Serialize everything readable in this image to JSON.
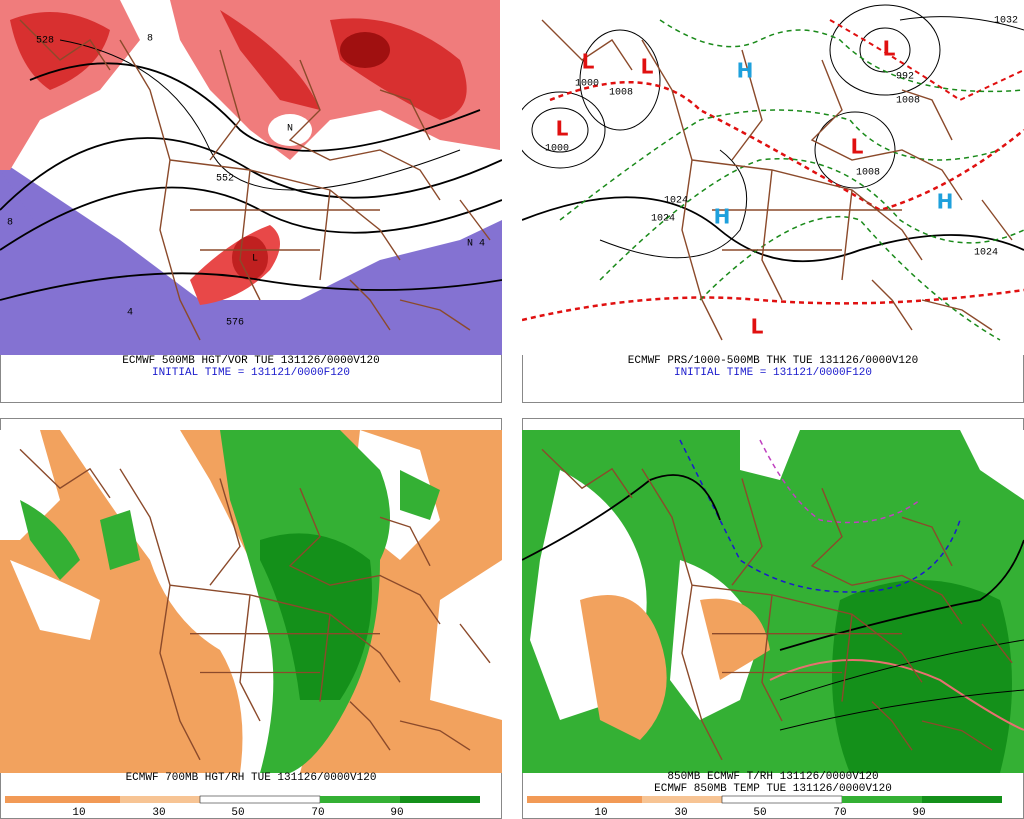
{
  "panels": [
    {
      "caption": "ECMWF 500MB HGT/VOR TUE 131126/0000V120",
      "subcaption": "INITIAL TIME = 131121/0000F120",
      "labels": [
        "528",
        "552",
        "576",
        "N",
        "L",
        "N",
        "4",
        "8",
        "8",
        "4"
      ]
    },
    {
      "caption": "ECMWF PRS/1000-500MB THK TUE 131126/0000V120",
      "subcaption": "INITIAL TIME = 131121/0000F120",
      "lows": [
        "L",
        "L",
        "L",
        "L",
        "L",
        "L"
      ],
      "highs": [
        "H",
        "H",
        "H"
      ],
      "labels": [
        "1000",
        "1008",
        "1000",
        "1024",
        "1024",
        "1024",
        "1032",
        "992",
        "1008",
        "1008"
      ]
    },
    {
      "caption": "ECMWF 700MB HGT/RH TUE 131126/0000V120",
      "colorbar": [
        "10",
        "30",
        "50",
        "70",
        "90"
      ]
    },
    {
      "caption": "850MB ECMWF T/RH 131126/0000V120",
      "subcaption": "ECMWF 850MB TEMP TUE 131126/0000V120",
      "colorbar": [
        "10",
        "30",
        "50",
        "70",
        "90"
      ]
    }
  ]
}
